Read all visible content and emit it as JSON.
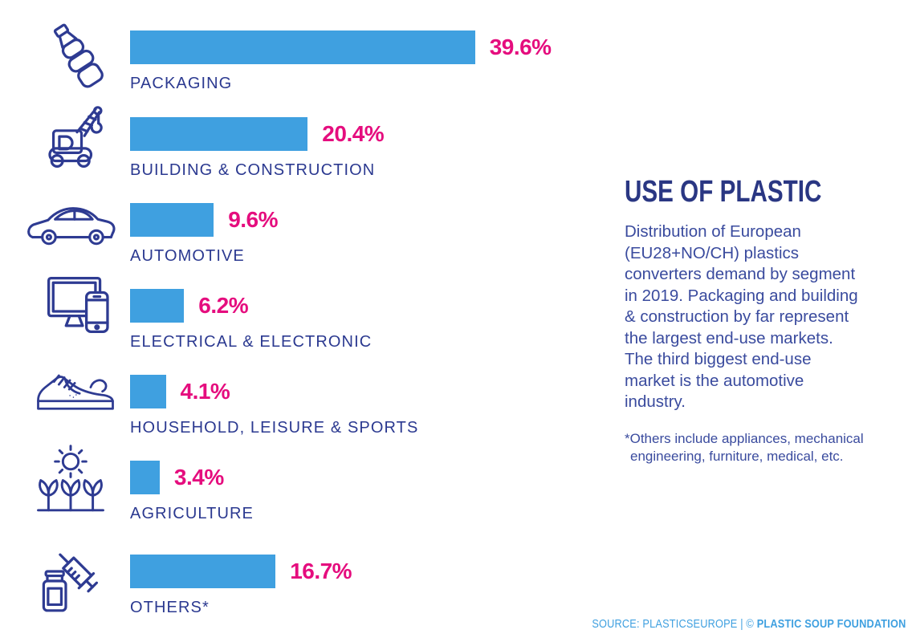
{
  "colors": {
    "bar": "#3FA0E0",
    "value_label": "#E50D7E",
    "category_label": "#2B3990",
    "icon": "#2E3B92",
    "title": "#2A3783",
    "body_text": "#3A4B9E",
    "background": "#FFFFFF"
  },
  "chart_data": {
    "type": "bar",
    "orientation": "horizontal",
    "title": "USE OF PLASTIC",
    "unit": "%",
    "categories": [
      "PACKAGING",
      "BUILDING & CONSTRUCTION",
      "AUTOMOTIVE",
      "ELECTRICAL & ELECTRONIC",
      "HOUSEHOLD, LEISURE & SPORTS",
      "AGRICULTURE",
      "OTHERS*"
    ],
    "values": [
      39.6,
      20.4,
      9.6,
      6.2,
      4.1,
      3.4,
      16.7
    ],
    "value_labels": [
      "39.6%",
      "20.4%",
      "9.6%",
      "6.2%",
      "4.1%",
      "3.4%",
      "16.7%"
    ],
    "icons": [
      "plastic-bottle",
      "construction-crane",
      "car",
      "monitor-smartphone",
      "sneaker",
      "sun-and-plants",
      "syringe-and-vial"
    ],
    "xlim": [
      0,
      40
    ],
    "grid": false,
    "legend": false,
    "bar_color": "#3FA0E0",
    "value_label_color": "#E50D7E"
  },
  "panel": {
    "title": "USE OF PLASTIC",
    "description_lines": [
      "Distribution of European",
      "(EU28+NO/CH) plastics",
      "converters demand by segment",
      "in 2019. Packaging and building",
      "& construction by far represent",
      "the largest end-use markets.",
      "The third biggest end-use",
      "market is the automotive",
      "industry."
    ],
    "footnote_lines": [
      "*Others include appliances, mechanical",
      "engineering, furniture, medical, etc."
    ]
  },
  "footer": {
    "source_regular": "SOURCE: PLASTICSEUROPE | © ",
    "source_bold": "PLASTIC SOUP FOUNDATION"
  }
}
